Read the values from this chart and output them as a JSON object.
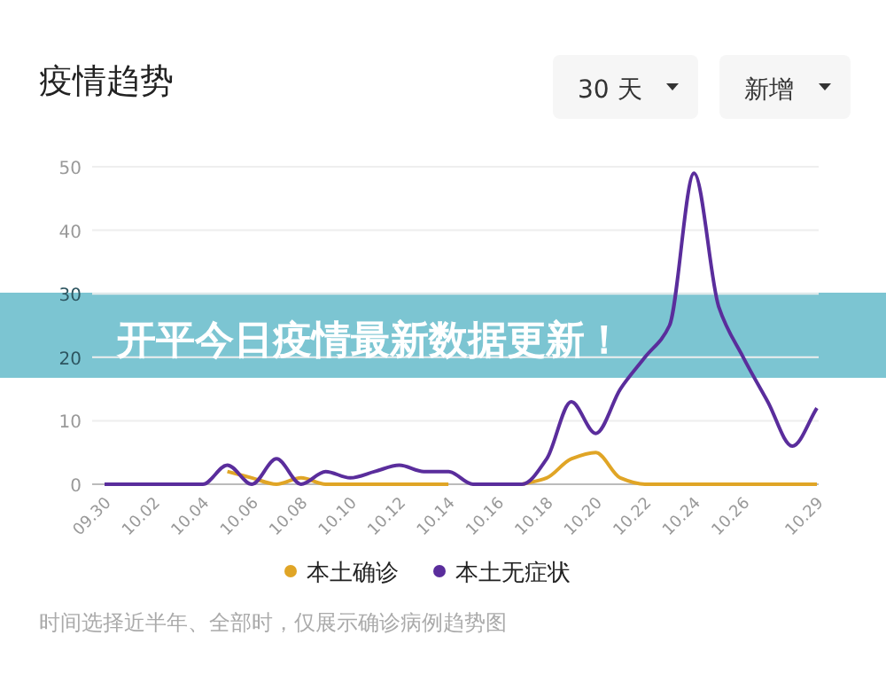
{
  "chart_data": {
    "type": "line",
    "title": "疫情趋势",
    "annotations": [
      "30 天",
      "新增",
      "开平今日疫情最新数据更新！",
      "时间选择近半年、全部时，仅展示确诊病例趋势图"
    ],
    "categories": [
      "09.30",
      null,
      "10.02",
      null,
      "10.04",
      null,
      "10.06",
      null,
      "10.08",
      null,
      "10.10",
      null,
      "10.12",
      null,
      "10.14",
      null,
      "10.16",
      null,
      "10.18",
      null,
      "10.20",
      null,
      "10.22",
      null,
      "10.24",
      null,
      "10.26",
      null,
      null,
      "10.29"
    ],
    "series": [
      {
        "name": "本土确诊",
        "color": "#e0a526",
        "values": [
          null,
          null,
          null,
          null,
          null,
          2,
          1,
          0,
          1,
          0,
          0,
          0,
          0,
          0,
          0,
          null,
          null,
          0,
          1,
          4,
          5,
          1,
          0,
          0,
          0,
          0,
          0,
          0,
          0,
          0
        ]
      },
      {
        "name": "本土无症状",
        "color": "#5a2d9c",
        "values": [
          0,
          0,
          0,
          0,
          0,
          3,
          0,
          4,
          0,
          2,
          1,
          2,
          3,
          2,
          2,
          0,
          0,
          0,
          4,
          13,
          8,
          15,
          20,
          25,
          49,
          28,
          20,
          13,
          6,
          12
        ]
      }
    ],
    "ylim": [
      0,
      50
    ],
    "yticks": [
      0,
      10,
      20,
      30,
      40,
      50
    ],
    "grid": "y",
    "legend": "bottom",
    "marker": "none",
    "line_style": "solid"
  }
}
